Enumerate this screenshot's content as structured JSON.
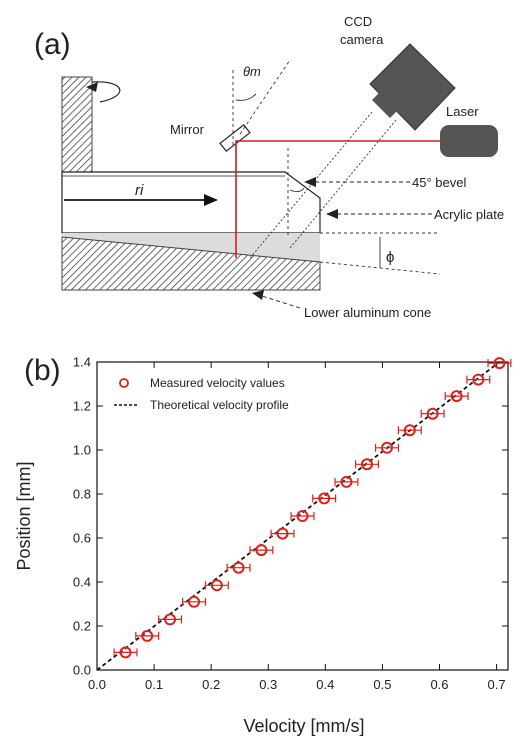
{
  "panel_a": {
    "label": "(a)",
    "labels": {
      "ccd_line1": "CCD",
      "ccd_line2": "camera",
      "laser": "Laser",
      "mirror": "Mirror",
      "theta": "θm",
      "r": "ri",
      "bevel": "45° bevel",
      "acrylic": "Acrylic plate",
      "phi": "ϕ",
      "cone": "Lower aluminum cone"
    }
  },
  "chart_data": {
    "panel_label": "(b)",
    "type": "scatter",
    "xlabel": "Velocity [mm/s]",
    "ylabel": "Position [mm]",
    "xlim": [
      0.0,
      0.72
    ],
    "ylim": [
      0.0,
      1.4
    ],
    "xticks": [
      0.0,
      0.1,
      0.2,
      0.3,
      0.4,
      0.5,
      0.6,
      0.7
    ],
    "xtick_labels": [
      "0.0",
      "0.1",
      "0.2",
      "0.3",
      "0.4",
      "0.5",
      "0.6",
      "0.7"
    ],
    "yticks": [
      0.0,
      0.2,
      0.4,
      0.6,
      0.8,
      1.0,
      1.2,
      1.4
    ],
    "ytick_labels": [
      "0.0",
      "0.2",
      "0.4",
      "0.6",
      "0.8",
      "1.0",
      "1.2",
      "1.4"
    ],
    "grid": false,
    "legend_position": "top-left",
    "series": [
      {
        "name": "Measured velocity values",
        "style": "open-circle-markers-with-x-error-bars",
        "color": "#e0201b",
        "x": [
          0.05,
          0.088,
          0.128,
          0.17,
          0.21,
          0.248,
          0.288,
          0.325,
          0.36,
          0.398,
          0.437,
          0.473,
          0.508,
          0.548,
          0.588,
          0.63,
          0.668,
          0.705
        ],
        "y": [
          0.08,
          0.155,
          0.23,
          0.31,
          0.385,
          0.465,
          0.545,
          0.62,
          0.7,
          0.78,
          0.855,
          0.935,
          1.01,
          1.09,
          1.165,
          1.245,
          1.32,
          1.395
        ],
        "x_error": 0.02
      },
      {
        "name": "Theoretical velocity profile",
        "style": "dashed-line",
        "color": "#111111",
        "x": [
          0.0,
          0.705
        ],
        "y": [
          0.0,
          1.4
        ]
      }
    ]
  }
}
